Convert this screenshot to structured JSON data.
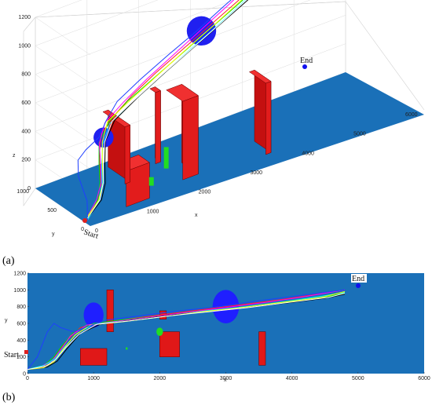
{
  "panel_labels": [
    "(a)",
    "(b)"
  ],
  "annotations": {
    "start": "Start",
    "end": "End"
  },
  "chart_data": [
    {
      "type": "line",
      "view": "3d",
      "xlabel": "x",
      "ylabel": "y",
      "zlabel": "z",
      "xlim": [
        0,
        6000
      ],
      "ylim": [
        0,
        1000
      ],
      "zlim": [
        0,
        1200
      ],
      "xticks": [
        0,
        1000,
        2000,
        3000,
        4000,
        5000,
        6000
      ],
      "yticks": [
        0,
        500,
        1000
      ],
      "zticks": [
        0,
        200,
        400,
        600,
        800,
        1000,
        1200
      ],
      "grid": true,
      "start": [
        0,
        0,
        0
      ],
      "end": [
        5000,
        1000,
        1000
      ],
      "spheres": [
        {
          "x": 1000,
          "y": 700,
          "z": 300,
          "r": 150
        },
        {
          "x": 3000,
          "y": 800,
          "z": 750,
          "r": 220
        }
      ],
      "buildings": [
        {
          "x0": 800,
          "x1": 1250,
          "y0": 100,
          "y1": 300,
          "z1": 250
        },
        {
          "x0": 1200,
          "x1": 1300,
          "y0": 500,
          "y1": 900,
          "z1": 400
        },
        {
          "x0": 1950,
          "x1": 2050,
          "y0": 650,
          "y1": 750,
          "z1": 500
        },
        {
          "x0": 2000,
          "x1": 2300,
          "y0": 200,
          "y1": 500,
          "z1": 550
        },
        {
          "x0": 3500,
          "x1": 3600,
          "y0": 100,
          "y1": 400,
          "z1": 500
        }
      ]
    },
    {
      "type": "line",
      "view": "top",
      "xlabel": "x",
      "ylabel": "y",
      "xlim": [
        0,
        6000
      ],
      "ylim": [
        0,
        1200
      ],
      "xticks": [
        0,
        1000,
        2000,
        3000,
        4000,
        5000,
        6000
      ],
      "yticks": [
        0,
        200,
        400,
        600,
        800,
        1000,
        1200
      ],
      "start": [
        0,
        0
      ],
      "end": [
        5000,
        1000
      ],
      "circles": [
        {
          "x": 1000,
          "y": 700,
          "r": 150,
          "color": "#1f1fff"
        },
        {
          "x": 3000,
          "y": 800,
          "r": 200,
          "color": "#1f1fff"
        },
        {
          "x": 2000,
          "y": 500,
          "r": 50,
          "color": "#22dd22"
        },
        {
          "x": 1500,
          "y": 300,
          "r": 15,
          "color": "#22dd22"
        }
      ],
      "rects": [
        {
          "x0": 800,
          "x1": 1200,
          "y0": 100,
          "y1": 300
        },
        {
          "x0": 1200,
          "x1": 1300,
          "y0": 500,
          "y1": 1000
        },
        {
          "x0": 2000,
          "x1": 2100,
          "y0": 650,
          "y1": 750
        },
        {
          "x0": 2000,
          "x1": 2300,
          "y0": 200,
          "y1": 500
        },
        {
          "x0": 3500,
          "x1": 3600,
          "y0": 100,
          "y1": 500
        }
      ],
      "series": [
        {
          "color": "#ff2020",
          "x": [
            0,
            200,
            350,
            450,
            600,
            800,
            1100,
            1500,
            2000,
            2600,
            3200,
            3800,
            4400,
            4800
          ],
          "y": [
            50,
            80,
            120,
            250,
            400,
            550,
            600,
            650,
            700,
            760,
            820,
            880,
            950,
            1000
          ]
        },
        {
          "color": "#00e000",
          "x": [
            0,
            250,
            400,
            520,
            700,
            1000,
            1400,
            2000,
            2600,
            3200,
            3800,
            4400,
            4800
          ],
          "y": [
            50,
            100,
            200,
            330,
            500,
            600,
            640,
            690,
            740,
            790,
            840,
            900,
            960
          ]
        },
        {
          "color": "#ff00ff",
          "x": [
            0,
            220,
            380,
            500,
            650,
            900,
            1300,
            1800,
            2400,
            3000,
            3600,
            4200,
            4800
          ],
          "y": [
            50,
            90,
            160,
            280,
            450,
            580,
            620,
            670,
            730,
            790,
            850,
            920,
            1000
          ]
        },
        {
          "color": "#00ffff",
          "x": [
            0,
            260,
            420,
            560,
            750,
            1000,
            1500,
            2100,
            2700,
            3300,
            3900,
            4500,
            4800
          ],
          "y": [
            50,
            100,
            180,
            320,
            480,
            590,
            630,
            690,
            750,
            800,
            860,
            930,
            970
          ]
        },
        {
          "color": "#000000",
          "x": [
            0,
            300,
            450,
            600,
            800,
            1100,
            1600,
            2200,
            2800,
            3400,
            4000,
            4500,
            4800
          ],
          "y": [
            50,
            80,
            150,
            300,
            480,
            590,
            640,
            700,
            750,
            800,
            850,
            900,
            950
          ]
        },
        {
          "color": "#ffff00",
          "x": [
            0,
            240,
            400,
            540,
            720,
            950,
            1450,
            2050,
            2650,
            3250,
            3850,
            4450,
            4800
          ],
          "y": [
            50,
            70,
            140,
            290,
            460,
            580,
            620,
            680,
            740,
            790,
            850,
            910,
            980
          ]
        },
        {
          "color": "#1f3fff",
          "x": [
            0,
            150,
            300,
            400,
            500,
            700,
            900,
            1200,
            1700,
            2300,
            2900,
            3500,
            4100,
            4800
          ],
          "y": [
            50,
            200,
            500,
            600,
            550,
            500,
            560,
            640,
            690,
            750,
            800,
            870,
            930,
            1000
          ]
        },
        {
          "color": "#ffffff",
          "x": [
            0,
            280,
            430,
            580,
            780,
            1050,
            1550,
            2150,
            2750,
            3350,
            3950,
            4550,
            4800
          ],
          "y": [
            50,
            90,
            170,
            310,
            470,
            590,
            630,
            690,
            740,
            790,
            850,
            910,
            960
          ]
        }
      ]
    }
  ]
}
